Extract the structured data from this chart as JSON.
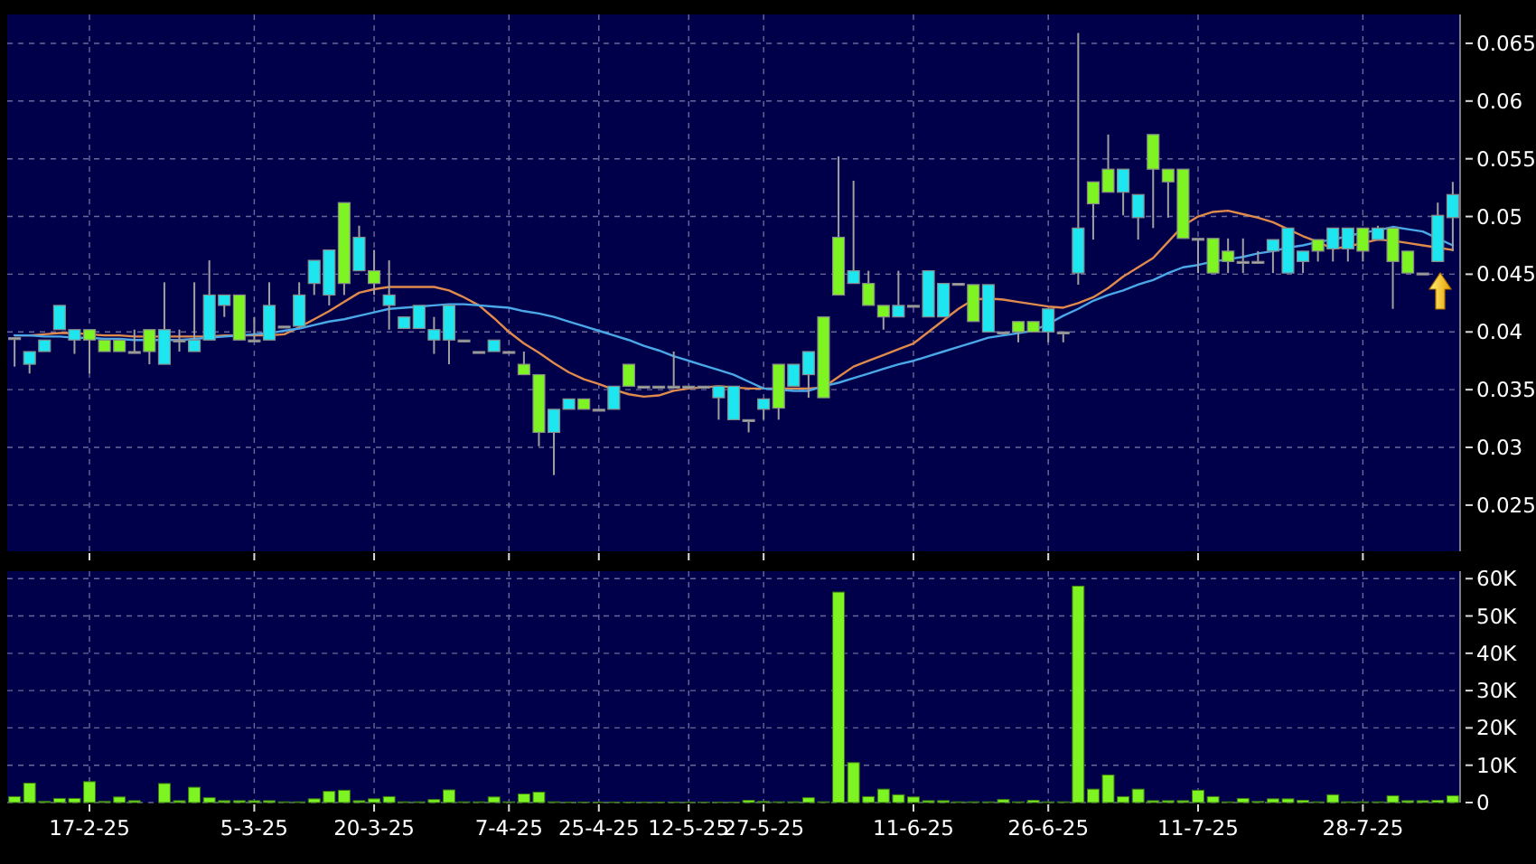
{
  "chart_data": [
    {
      "type": "candlestick",
      "categories": [
        null,
        null,
        null,
        null,
        null,
        null,
        null,
        null,
        null,
        null,
        null,
        null,
        null,
        null,
        null,
        null,
        null,
        null,
        null,
        null,
        null,
        null,
        null,
        null,
        null,
        null,
        null,
        null,
        null,
        null,
        null,
        null,
        null,
        null,
        null,
        null,
        null,
        null,
        null,
        null,
        null,
        null,
        null,
        null,
        null,
        null,
        null,
        null,
        null,
        null,
        null,
        null,
        null,
        null,
        null,
        null,
        null,
        null,
        null,
        null,
        null,
        null,
        null,
        null,
        null,
        null,
        null,
        null,
        null,
        null,
        null,
        null,
        null,
        null,
        null,
        null,
        null,
        null,
        null,
        null,
        null,
        null,
        null,
        null,
        null,
        null,
        null,
        null,
        null,
        null,
        null,
        null,
        null,
        null,
        null,
        null,
        null
      ],
      "ohlc": [
        [
          0.0395,
          0.0395,
          0.037,
          0.0395
        ],
        [
          0.0372,
          0.0383,
          0.0364,
          0.0383
        ],
        [
          0.0383,
          0.0393,
          0.0383,
          0.0393
        ],
        [
          0.0402,
          0.0423,
          0.0402,
          0.0423
        ],
        [
          0.0393,
          0.0402,
          0.0381,
          0.0402
        ],
        [
          0.0402,
          0.0402,
          0.0364,
          0.0393
        ],
        [
          0.0393,
          0.0393,
          0.0383,
          0.0383
        ],
        [
          0.0393,
          0.0393,
          0.0383,
          0.0383
        ],
        [
          0.0383,
          0.0402,
          0.0383,
          0.0383
        ],
        [
          0.0402,
          0.0402,
          0.0372,
          0.0383
        ],
        [
          0.0372,
          0.0443,
          0.0372,
          0.0402
        ],
        [
          0.0393,
          0.0402,
          0.0383,
          0.0393
        ],
        [
          0.0383,
          0.0443,
          0.0383,
          0.0393
        ],
        [
          0.0393,
          0.0462,
          0.0393,
          0.0432
        ],
        [
          0.0423,
          0.0432,
          0.0413,
          0.0432
        ],
        [
          0.0432,
          0.0432,
          0.0393,
          0.0393
        ],
        [
          0.0393,
          0.0413,
          0.0393,
          0.0393
        ],
        [
          0.0393,
          0.0443,
          0.0393,
          0.0423
        ],
        [
          0.0405,
          0.0405,
          0.0405,
          0.0405
        ],
        [
          0.0405,
          0.0443,
          0.0405,
          0.0432
        ],
        [
          0.0442,
          0.0462,
          0.0432,
          0.0462
        ],
        [
          0.0432,
          0.0471,
          0.0423,
          0.0471
        ],
        [
          0.0512,
          0.0512,
          0.0432,
          0.0442
        ],
        [
          0.0453,
          0.0492,
          0.0453,
          0.0482
        ],
        [
          0.0453,
          0.0471,
          0.0432,
          0.0442
        ],
        [
          0.0423,
          0.0462,
          0.0402,
          0.0432
        ],
        [
          0.0403,
          0.0413,
          0.0403,
          0.0413
        ],
        [
          0.0403,
          0.0423,
          0.0403,
          0.0423
        ],
        [
          0.0393,
          0.0413,
          0.0381,
          0.0402
        ],
        [
          0.0393,
          0.0423,
          0.0372,
          0.0423
        ],
        [
          0.0393,
          0.0393,
          0.0393,
          0.0393
        ],
        [
          0.0383,
          0.0383,
          0.0383,
          0.0383
        ],
        [
          0.0383,
          0.0393,
          0.0383,
          0.0393
        ],
        [
          0.0383,
          0.0383,
          0.0383,
          0.0383
        ],
        [
          0.0372,
          0.0383,
          0.0363,
          0.0363
        ],
        [
          0.0363,
          0.0363,
          0.0301,
          0.0313
        ],
        [
          0.0313,
          0.0333,
          0.0276,
          0.0333
        ],
        [
          0.0333,
          0.0342,
          0.0333,
          0.0342
        ],
        [
          0.0342,
          0.0342,
          0.0333,
          0.0333
        ],
        [
          0.0333,
          0.0333,
          0.0333,
          0.0333
        ],
        [
          0.0333,
          0.0353,
          0.0333,
          0.0353
        ],
        [
          0.0372,
          0.0372,
          0.0353,
          0.0353
        ],
        [
          0.0353,
          0.0353,
          0.0353,
          0.0353
        ],
        [
          0.0353,
          0.0353,
          0.0353,
          0.0353
        ],
        [
          0.0353,
          0.0383,
          0.0353,
          0.0353
        ],
        [
          0.0353,
          0.0353,
          0.0353,
          0.0353
        ],
        [
          0.0353,
          0.0353,
          0.0353,
          0.0353
        ],
        [
          0.0343,
          0.0353,
          0.0324,
          0.0353
        ],
        [
          0.0324,
          0.0353,
          0.0324,
          0.0353
        ],
        [
          0.0324,
          0.0324,
          0.0313,
          0.0324
        ],
        [
          0.0333,
          0.0342,
          0.0324,
          0.0342
        ],
        [
          0.0372,
          0.0372,
          0.0324,
          0.0334
        ],
        [
          0.0353,
          0.0372,
          0.0353,
          0.0372
        ],
        [
          0.0363,
          0.0383,
          0.0343,
          0.0383
        ],
        [
          0.0413,
          0.0413,
          0.0343,
          0.0343
        ],
        [
          0.0482,
          0.0552,
          0.0432,
          0.0432
        ],
        [
          0.0442,
          0.0531,
          0.0442,
          0.0453
        ],
        [
          0.0442,
          0.0453,
          0.0423,
          0.0423
        ],
        [
          0.0423,
          0.0423,
          0.0402,
          0.0413
        ],
        [
          0.0413,
          0.0453,
          0.0413,
          0.0423
        ],
        [
          0.0423,
          0.0423,
          0.0423,
          0.0423
        ],
        [
          0.0413,
          0.0453,
          0.0413,
          0.0453
        ],
        [
          0.0413,
          0.0442,
          0.0413,
          0.0442
        ],
        [
          0.0442,
          0.0442,
          0.0442,
          0.0442
        ],
        [
          0.0441,
          0.0441,
          0.0409,
          0.0409
        ],
        [
          0.04,
          0.0441,
          0.04,
          0.0441
        ],
        [
          0.04,
          0.04,
          0.04,
          0.04
        ],
        [
          0.0409,
          0.0409,
          0.0391,
          0.04
        ],
        [
          0.0409,
          0.0409,
          0.04,
          0.04
        ],
        [
          0.04,
          0.042,
          0.0391,
          0.042
        ],
        [
          0.04,
          0.04,
          0.0391,
          0.04
        ],
        [
          0.0451,
          0.0659,
          0.0441,
          0.049
        ],
        [
          0.053,
          0.053,
          0.048,
          0.0511
        ],
        [
          0.0541,
          0.0571,
          0.0521,
          0.0521
        ],
        [
          0.0521,
          0.0541,
          0.0501,
          0.0541
        ],
        [
          0.0499,
          0.0519,
          0.048,
          0.0519
        ],
        [
          0.0571,
          0.0571,
          0.049,
          0.0541
        ],
        [
          0.0541,
          0.0541,
          0.0499,
          0.053
        ],
        [
          0.0541,
          0.0541,
          0.0481,
          0.0481
        ],
        [
          0.0481,
          0.0481,
          0.0451,
          0.0481
        ],
        [
          0.0481,
          0.0481,
          0.0451,
          0.0451
        ],
        [
          0.047,
          0.0481,
          0.0451,
          0.0461
        ],
        [
          0.0461,
          0.0481,
          0.0451,
          0.0461
        ],
        [
          0.0461,
          0.047,
          0.0461,
          0.0461
        ],
        [
          0.047,
          0.048,
          0.0451,
          0.048
        ],
        [
          0.0451,
          0.049,
          0.0451,
          0.049
        ],
        [
          0.0461,
          0.047,
          0.0451,
          0.047
        ],
        [
          0.048,
          0.048,
          0.0461,
          0.047
        ],
        [
          0.0472,
          0.049,
          0.0461,
          0.049
        ],
        [
          0.0472,
          0.049,
          0.0461,
          0.049
        ],
        [
          0.049,
          0.049,
          0.0461,
          0.047
        ],
        [
          0.048,
          0.0492,
          0.048,
          0.049
        ],
        [
          0.049,
          0.049,
          0.042,
          0.0461
        ],
        [
          0.047,
          0.047,
          0.0451,
          0.0451
        ],
        [
          0.0451,
          0.0451,
          0.0451,
          0.0451
        ],
        [
          0.0461,
          0.0512,
          0.0461,
          0.0501
        ],
        [
          0.0499,
          0.053,
          0.047,
          0.0519
        ]
      ],
      "colors": [
        "#b0b0b0",
        "#1ee6f0",
        "#1ee6f0",
        "#1ee6f0",
        "#1ee6f0",
        "#7ef423",
        "#7ef423",
        "#7ef423",
        "#b0b0b0",
        "#7ef423",
        "#1ee6f0",
        "#b0b0b0",
        "#1ee6f0",
        "#1ee6f0",
        "#1ee6f0",
        "#7ef423",
        "#b0b0b0",
        "#1ee6f0",
        "#b0b0b0",
        "#1ee6f0",
        "#1ee6f0",
        "#1ee6f0",
        "#7ef423",
        "#1ee6f0",
        "#7ef423",
        "#1ee6f0",
        "#1ee6f0",
        "#1ee6f0",
        "#1ee6f0",
        "#1ee6f0",
        "#b0b0b0",
        "#b0b0b0",
        "#1ee6f0",
        "#b0b0b0",
        "#7ef423",
        "#7ef423",
        "#1ee6f0",
        "#1ee6f0",
        "#7ef423",
        "#b0b0b0",
        "#1ee6f0",
        "#7ef423",
        "#b0b0b0",
        "#b0b0b0",
        "#b0b0b0",
        "#b0b0b0",
        "#b0b0b0",
        "#1ee6f0",
        "#1ee6f0",
        "#b0b0b0",
        "#1ee6f0",
        "#7ef423",
        "#1ee6f0",
        "#1ee6f0",
        "#7ef423",
        "#7ef423",
        "#1ee6f0",
        "#7ef423",
        "#7ef423",
        "#1ee6f0",
        "#b0b0b0",
        "#1ee6f0",
        "#1ee6f0",
        "#b0b0b0",
        "#7ef423",
        "#1ee6f0",
        "#b0b0b0",
        "#7ef423",
        "#7ef423",
        "#1ee6f0",
        "#b0b0b0",
        "#1ee6f0",
        "#7ef423",
        "#7ef423",
        "#1ee6f0",
        "#1ee6f0",
        "#7ef423",
        "#7ef423",
        "#7ef423",
        "#b0b0b0",
        "#7ef423",
        "#7ef423",
        "#b0b0b0",
        "#b0b0b0",
        "#1ee6f0",
        "#1ee6f0",
        "#1ee6f0",
        "#7ef423",
        "#1ee6f0",
        "#1ee6f0",
        "#7ef423",
        "#1ee6f0",
        "#7ef423",
        "#7ef423",
        "#b0b0b0",
        "#1ee6f0",
        "#1ee6f0"
      ],
      "series": [
        {
          "type": "line",
          "color": "#e08a4c",
          "values": [
            0.0397,
            0.0397,
            0.0398,
            0.0399,
            0.0399,
            0.0398,
            0.0397,
            0.0397,
            0.0396,
            0.0396,
            0.0396,
            0.0396,
            0.0396,
            0.0396,
            0.0397,
            null,
            0.0397,
            0.0397,
            0.0398,
            0.0404,
            0.0411,
            0.0418,
            0.0426,
            0.0434,
            0.0437,
            0.0439,
            0.0439,
            0.0439,
            0.0439,
            0.0436,
            0.043,
            0.0423,
            0.0412,
            0.04,
            0.039,
            0.0382,
            0.0373,
            0.0365,
            0.0359,
            0.0355,
            0.035,
            0.0346,
            0.0344,
            0.0345,
            0.0349,
            0.0351,
            0.0352,
            0.0353,
            0.0352,
            0.0351,
            0.0351,
            0.0351,
            0.0351,
            0.0351,
            0.0352,
            0.0361,
            0.037,
            0.0375,
            0.038,
            0.0385,
            0.039,
            0.04,
            0.041,
            0.042,
            0.0428,
            0.0429,
            0.0428,
            0.0426,
            0.0424,
            0.0422,
            0.0421,
            0.0425,
            0.043,
            0.0438,
            0.0448,
            0.0456,
            0.0464,
            0.0478,
            0.0492,
            0.05,
            0.0504,
            0.0505,
            0.0502,
            0.0499,
            0.0495,
            0.0489,
            0.0483,
            0.0478,
            0.0472,
            0.0474,
            0.0477,
            0.048,
            0.0479,
            0.0477,
            0.0475,
            0.0473,
            0.0471
          ]
        },
        {
          "type": "line",
          "color": "#4aa8e8",
          "values": [
            0.0397,
            0.0397,
            0.0396,
            0.0396,
            0.0395,
            0.0395,
            0.0394,
            0.0394,
            0.0393,
            0.0393,
            0.0393,
            0.0393,
            0.0394,
            0.0395,
            0.0396,
            0.0397,
            0.0398,
            0.0399,
            0.0401,
            0.0403,
            0.0406,
            0.0409,
            0.0411,
            0.0414,
            0.0417,
            0.042,
            0.0421,
            0.0422,
            0.0423,
            0.0424,
            0.0424,
            0.0423,
            0.0422,
            0.0421,
            0.0418,
            0.0416,
            0.0413,
            0.0409,
            0.0405,
            0.0401,
            0.0397,
            0.0393,
            0.0388,
            0.0384,
            0.0379,
            0.0375,
            0.0371,
            0.0367,
            0.0363,
            0.0357,
            0.0351,
            0.035,
            0.0349,
            0.0349,
            0.0353,
            0.0356,
            0.036,
            0.0364,
            0.0368,
            0.0372,
            0.0375,
            0.0379,
            0.0383,
            0.0387,
            0.0391,
            0.0395,
            0.0397,
            0.0399,
            0.0401,
            0.0407,
            0.0414,
            0.042,
            0.0427,
            0.0432,
            0.0436,
            0.0441,
            0.0445,
            0.0451,
            0.0456,
            0.0458,
            0.0461,
            0.0463,
            0.0465,
            0.0468,
            0.047,
            0.0473,
            0.0475,
            0.0478,
            0.048,
            0.0483,
            0.0486,
            0.0488,
            0.0491,
            0.0489,
            0.0487,
            0.0481,
            0.0475
          ]
        }
      ],
      "ylim": [
        0.021,
        0.0675
      ],
      "yticks": [
        0.025,
        0.03,
        0.035,
        0.04,
        0.045,
        0.05,
        0.055,
        0.06,
        0.065
      ],
      "grid": true,
      "tick_labels": "y"
    },
    {
      "type": "bar",
      "categories": [
        null,
        null,
        null,
        null,
        null,
        "17-2-25",
        null,
        null,
        null,
        null,
        null,
        null,
        null,
        null,
        null,
        null,
        "5-3-25",
        null,
        null,
        null,
        null,
        null,
        null,
        null,
        "20-3-25",
        null,
        null,
        null,
        null,
        null,
        null,
        null,
        null,
        "7-4-25",
        null,
        null,
        null,
        null,
        null,
        "25-4-25",
        null,
        null,
        null,
        null,
        null,
        "12-5-25",
        null,
        null,
        null,
        null,
        "27-5-25",
        null,
        null,
        null,
        null,
        null,
        null,
        null,
        null,
        null,
        "11-6-25",
        null,
        null,
        null,
        null,
        null,
        null,
        null,
        null,
        "26-6-25",
        null,
        null,
        null,
        null,
        null,
        null,
        null,
        null,
        null,
        "11-7-25",
        null,
        null,
        null,
        null,
        null,
        null,
        null,
        null,
        null,
        null,
        "28-7-25",
        null,
        null,
        null,
        null,
        null,
        null
      ],
      "values": [
        1600,
        5200,
        300,
        1100,
        1100,
        5600,
        300,
        1500,
        500,
        0,
        5100,
        500,
        4100,
        1300,
        500,
        500,
        500,
        500,
        200,
        200,
        1000,
        3000,
        3300,
        500,
        1000,
        1600,
        200,
        200,
        800,
        3400,
        200,
        200,
        1500,
        200,
        2300,
        2800,
        200,
        100,
        100,
        100,
        100,
        100,
        100,
        100,
        100,
        100,
        100,
        100,
        100,
        600,
        300,
        200,
        200,
        1300,
        200,
        56400,
        10700,
        1600,
        3600,
        2100,
        1500,
        500,
        500,
        200,
        200,
        200,
        800,
        200,
        600,
        200,
        200,
        58000,
        3600,
        7400,
        1600,
        3600,
        500,
        500,
        500,
        3300,
        1600,
        200,
        1100,
        300,
        1000,
        1000,
        600,
        200,
        2100,
        200,
        200,
        200,
        1800,
        500,
        500,
        600,
        1800
      ],
      "color": "#7ef423",
      "ylim": [
        0,
        62000
      ],
      "yticks": [
        0,
        {
          "value": 10000,
          "label": "10K"
        },
        {
          "value": 20000,
          "label": "20K"
        },
        {
          "value": 30000,
          "label": "30K"
        },
        {
          "value": 40000,
          "label": "40K"
        },
        {
          "value": 50000,
          "label": "50K"
        },
        {
          "value": 60000,
          "label": "60K"
        }
      ],
      "grid": true
    }
  ]
}
